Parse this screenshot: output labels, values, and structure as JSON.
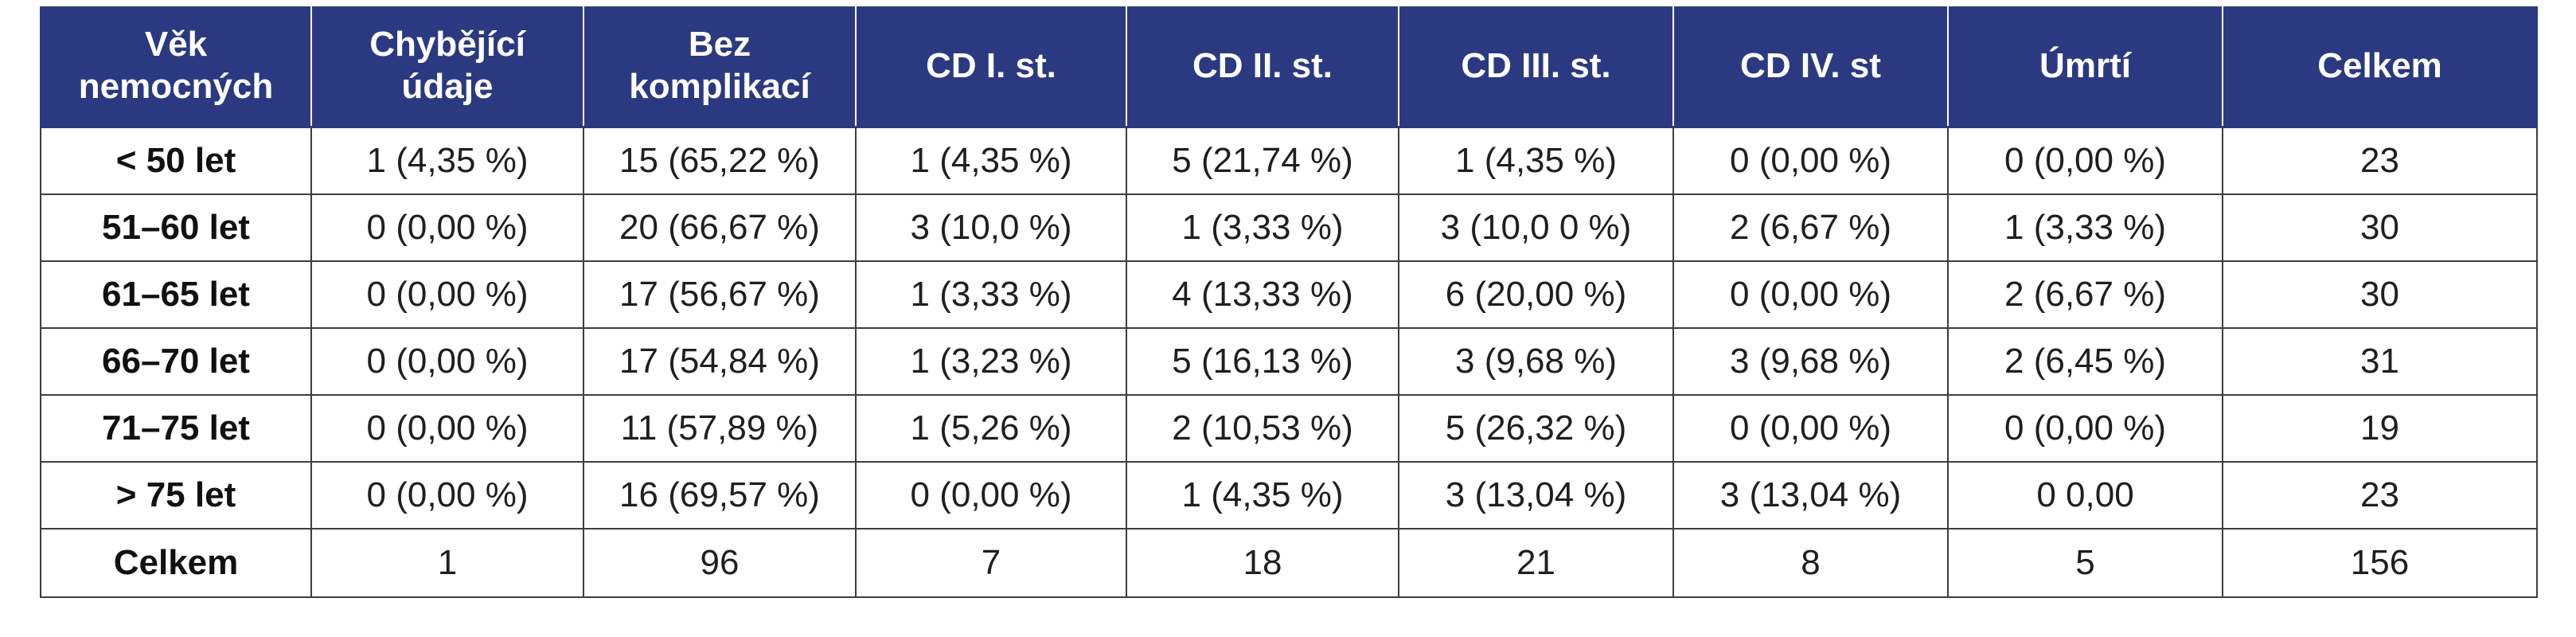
{
  "table": {
    "headers": [
      "Věk nemocných",
      "Chybějící údaje",
      "Bez komplikací",
      "CD I. st.",
      "CD II. st.",
      "CD III. st.",
      "CD IV. st",
      "Úmrtí",
      "Celkem"
    ],
    "header_lines": [
      [
        "Věk",
        "nemocných"
      ],
      [
        "Chybějící",
        "údaje"
      ],
      [
        "Bez",
        "komplikací"
      ],
      [
        "CD I. st."
      ],
      [
        "CD II. st."
      ],
      [
        "CD III. st."
      ],
      [
        "CD IV. st"
      ],
      [
        "Úmrtí"
      ],
      [
        "Celkem"
      ]
    ],
    "rows": [
      [
        "< 50 let",
        "1 (4,35 %)",
        "15 (65,22 %)",
        "1 (4,35 %)",
        "5 (21,74 %)",
        "1 (4,35 %)",
        "0 (0,00 %)",
        "0 (0,00 %)",
        "23"
      ],
      [
        "51–60 let",
        "0 (0,00 %)",
        "20 (66,67 %)",
        "3 (10,0 %)",
        "1 (3,33 %)",
        "3 (10,0 0 %)",
        "2 (6,67 %)",
        "1 (3,33 %)",
        "30"
      ],
      [
        "61–65 let",
        "0 (0,00 %)",
        "17 (56,67 %)",
        "1 (3,33 %)",
        "4 (13,33 %)",
        "6 (20,00 %)",
        "0 (0,00 %)",
        "2 (6,67 %)",
        "30"
      ],
      [
        "66–70 let",
        "0 (0,00 %)",
        "17 (54,84 %)",
        "1 (3,23 %)",
        "5 (16,13 %)",
        "3 (9,68 %)",
        "3 (9,68 %)",
        "2 (6,45 %)",
        "31"
      ],
      [
        "71–75 let",
        "0 (0,00 %)",
        "11 (57,89 %)",
        "1 (5,26 %)",
        "2 (10,53 %)",
        "5 (26,32 %)",
        "0 (0,00 %)",
        "0 (0,00 %)",
        "19"
      ],
      [
        "> 75 let",
        "0 (0,00 %)",
        "16 (69,57 %)",
        "0 (0,00 %)",
        "1 (4,35 %)",
        "3 (13,04 %)",
        "3 (13,04 %)",
        "0 0,00",
        "23"
      ],
      [
        "Celkem",
        "1",
        "96",
        "7",
        "18",
        "21",
        "8",
        "5",
        "156"
      ]
    ]
  },
  "colors": {
    "header_background": "#2b3a80",
    "header_text": "#ffffff",
    "border": "#3d3d3d"
  }
}
